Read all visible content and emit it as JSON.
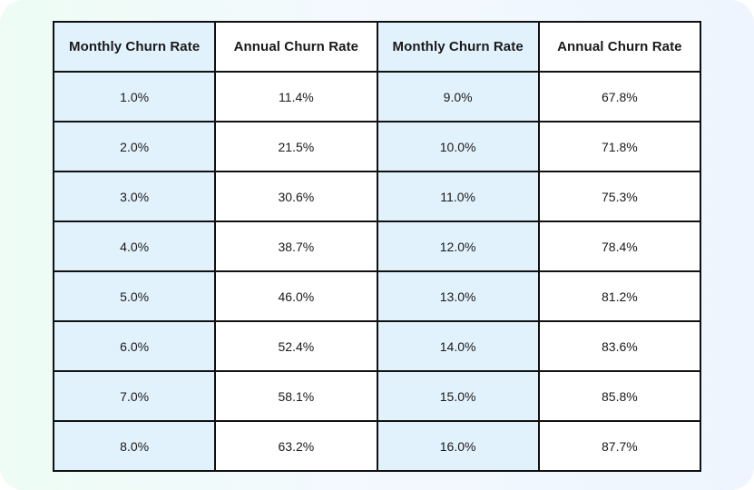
{
  "colors": {
    "accent_cell": "#e2f2fc",
    "border": "#111111",
    "text": "#1a1a1a"
  },
  "chart_data": {
    "type": "table",
    "columns": [
      "Monthly Churn Rate",
      "Annual Churn Rate",
      "Monthly Churn Rate",
      "Annual Churn Rate"
    ],
    "rows": [
      [
        "1.0%",
        "11.4%",
        "9.0%",
        "67.8%"
      ],
      [
        "2.0%",
        "21.5%",
        "10.0%",
        "71.8%"
      ],
      [
        "3.0%",
        "30.6%",
        "11.0%",
        "75.3%"
      ],
      [
        "4.0%",
        "38.7%",
        "12.0%",
        "78.4%"
      ],
      [
        "5.0%",
        "46.0%",
        "13.0%",
        "81.2%"
      ],
      [
        "6.0%",
        "52.4%",
        "14.0%",
        "83.6%"
      ],
      [
        "7.0%",
        "58.1%",
        "15.0%",
        "85.8%"
      ],
      [
        "8.0%",
        "63.2%",
        "16.0%",
        "87.7%"
      ]
    ]
  }
}
